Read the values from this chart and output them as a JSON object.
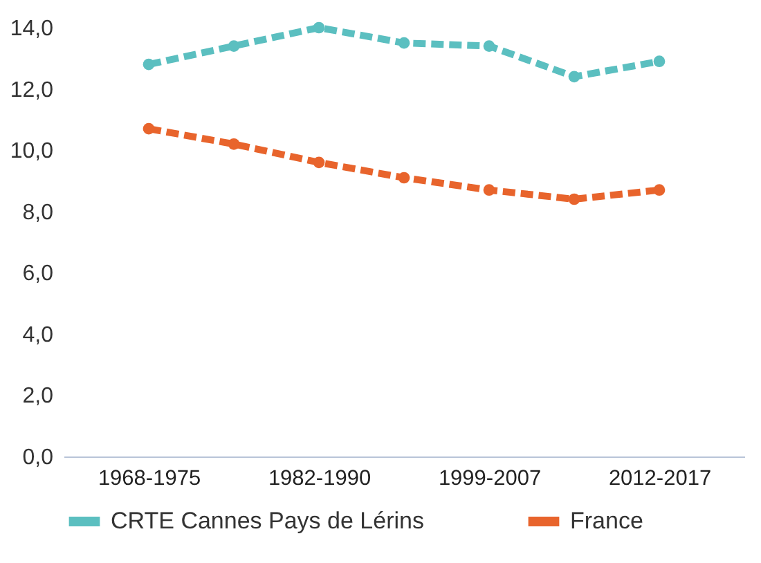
{
  "chart_data": {
    "type": "line",
    "categories": [
      "1968-1975",
      null,
      "1982-1990",
      null,
      "1999-2007",
      null,
      "2012-2017"
    ],
    "series": [
      {
        "name": "CRTE Cannes Pays de Lérins",
        "color": "#5bbfc0",
        "values": [
          12.8,
          13.4,
          14.0,
          13.5,
          13.4,
          12.4,
          12.9
        ]
      },
      {
        "name": "France",
        "color": "#e8642c",
        "values": [
          10.7,
          10.2,
          9.6,
          9.1,
          8.7,
          8.4,
          8.7
        ]
      }
    ],
    "ylim": [
      0,
      14
    ],
    "yticks": [
      {
        "value": 0,
        "label": "0,0"
      },
      {
        "value": 2,
        "label": "2,0"
      },
      {
        "value": 4,
        "label": "4,0"
      },
      {
        "value": 6,
        "label": "6,0"
      },
      {
        "value": 8,
        "label": "8,0"
      },
      {
        "value": 10,
        "label": "10,0"
      },
      {
        "value": 12,
        "label": "12,0"
      },
      {
        "value": 14,
        "label": "14,0"
      }
    ],
    "grid": false,
    "legend": "bottom",
    "marker": "circle",
    "line_style": "dashed"
  }
}
